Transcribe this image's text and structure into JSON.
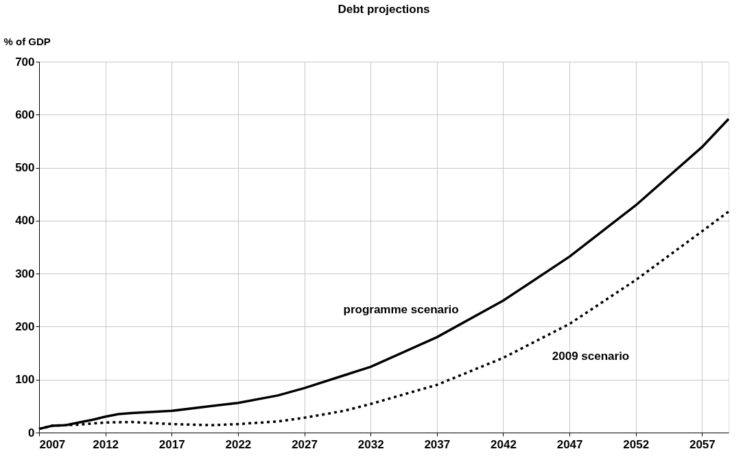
{
  "chart_data": {
    "type": "line",
    "title": "Debt projections",
    "ylabel": "% of GDP",
    "xlim": [
      2007,
      2059
    ],
    "xticks": [
      2007,
      2012,
      2017,
      2022,
      2027,
      2032,
      2037,
      2042,
      2047,
      2052,
      2057
    ],
    "ylim": [
      0,
      700
    ],
    "yticks": [
      0,
      100,
      200,
      300,
      400,
      500,
      600,
      700
    ],
    "grid": true,
    "series": [
      {
        "color": "#000000",
        "line_style": "solid",
        "x": [
          2007,
          2008,
          2009,
          2010,
          2011,
          2012,
          2013,
          2014,
          2017,
          2020,
          2022,
          2025,
          2027,
          2030,
          2032,
          2037,
          2042,
          2047,
          2052,
          2057,
          2059
        ],
        "values": [
          7,
          13,
          14,
          19,
          24,
          30,
          35,
          37,
          41,
          50,
          56,
          70,
          84,
          108,
          124,
          180,
          249,
          332,
          429,
          539,
          592
        ]
      },
      {
        "color": "#000000",
        "line_style": "dotted",
        "x": [
          2007,
          2008,
          2009,
          2010,
          2012,
          2014,
          2017,
          2020,
          2022,
          2025,
          2027,
          2030,
          2032,
          2037,
          2042,
          2047,
          2052,
          2057,
          2059
        ],
        "values": [
          7,
          13,
          14,
          15,
          19,
          20,
          16,
          14,
          16,
          21,
          28,
          41,
          54,
          90,
          141,
          205,
          288,
          380,
          417
        ]
      }
    ],
    "annotations": [
      "programme scenario",
      "2009 scenario"
    ]
  }
}
